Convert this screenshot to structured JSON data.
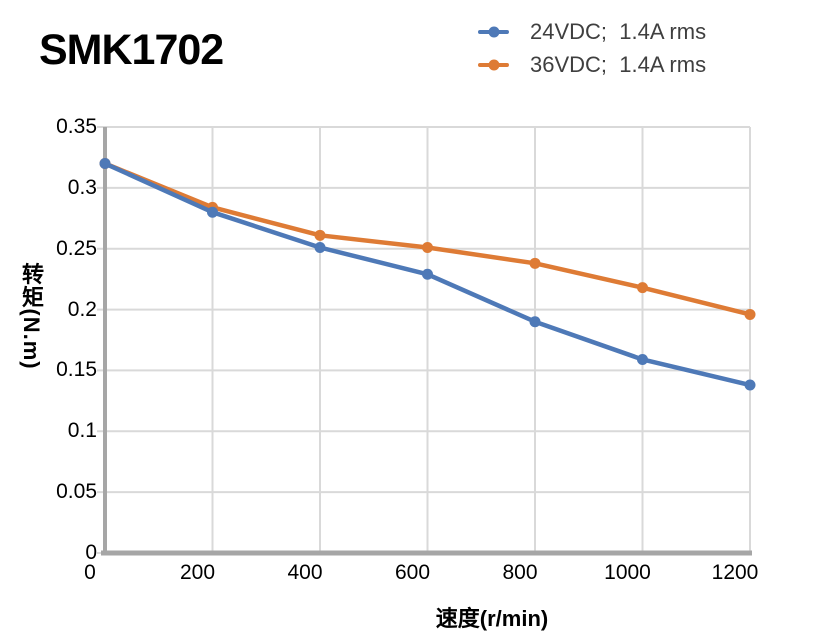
{
  "chart_data": {
    "type": "line",
    "title": "SMK1702",
    "xlabel": "速度(r/min)",
    "ylabel": "转矩(N.m)",
    "x": [
      0,
      200,
      400,
      600,
      800,
      1000,
      1200
    ],
    "xlim": [
      0,
      1200
    ],
    "ylim": [
      0,
      0.35
    ],
    "xticks": [
      0,
      200,
      400,
      600,
      800,
      1000,
      1200
    ],
    "xtick_labels": [
      "0",
      "200",
      "400",
      "600",
      "800",
      "1000",
      "1200"
    ],
    "yticks": [
      0,
      0.05,
      0.1,
      0.15,
      0.2,
      0.25,
      0.3,
      0.35
    ],
    "ytick_labels": [
      "0",
      "0.05",
      "0.1",
      "0.15",
      "0.2",
      "0.25",
      "0.3",
      "0.35"
    ],
    "grid": true,
    "legend_position": "top-right",
    "series": [
      {
        "name": "24VDC;  1.4A rms",
        "color": "#4E79B7",
        "marker": "circle",
        "values": [
          0.32,
          0.28,
          0.251,
          0.229,
          0.19,
          0.159,
          0.138
        ]
      },
      {
        "name": "36VDC;  1.4A rms",
        "color": "#DE7B35",
        "marker": "circle",
        "values": [
          0.32,
          0.284,
          0.261,
          0.251,
          0.238,
          0.218,
          0.196
        ]
      }
    ],
    "colors": {
      "grid": "#D9D9D9",
      "axis": "#A6A6A6",
      "tick_text": "#000000",
      "legend_text": "#3F3F3F",
      "title_text": "#000000"
    }
  }
}
